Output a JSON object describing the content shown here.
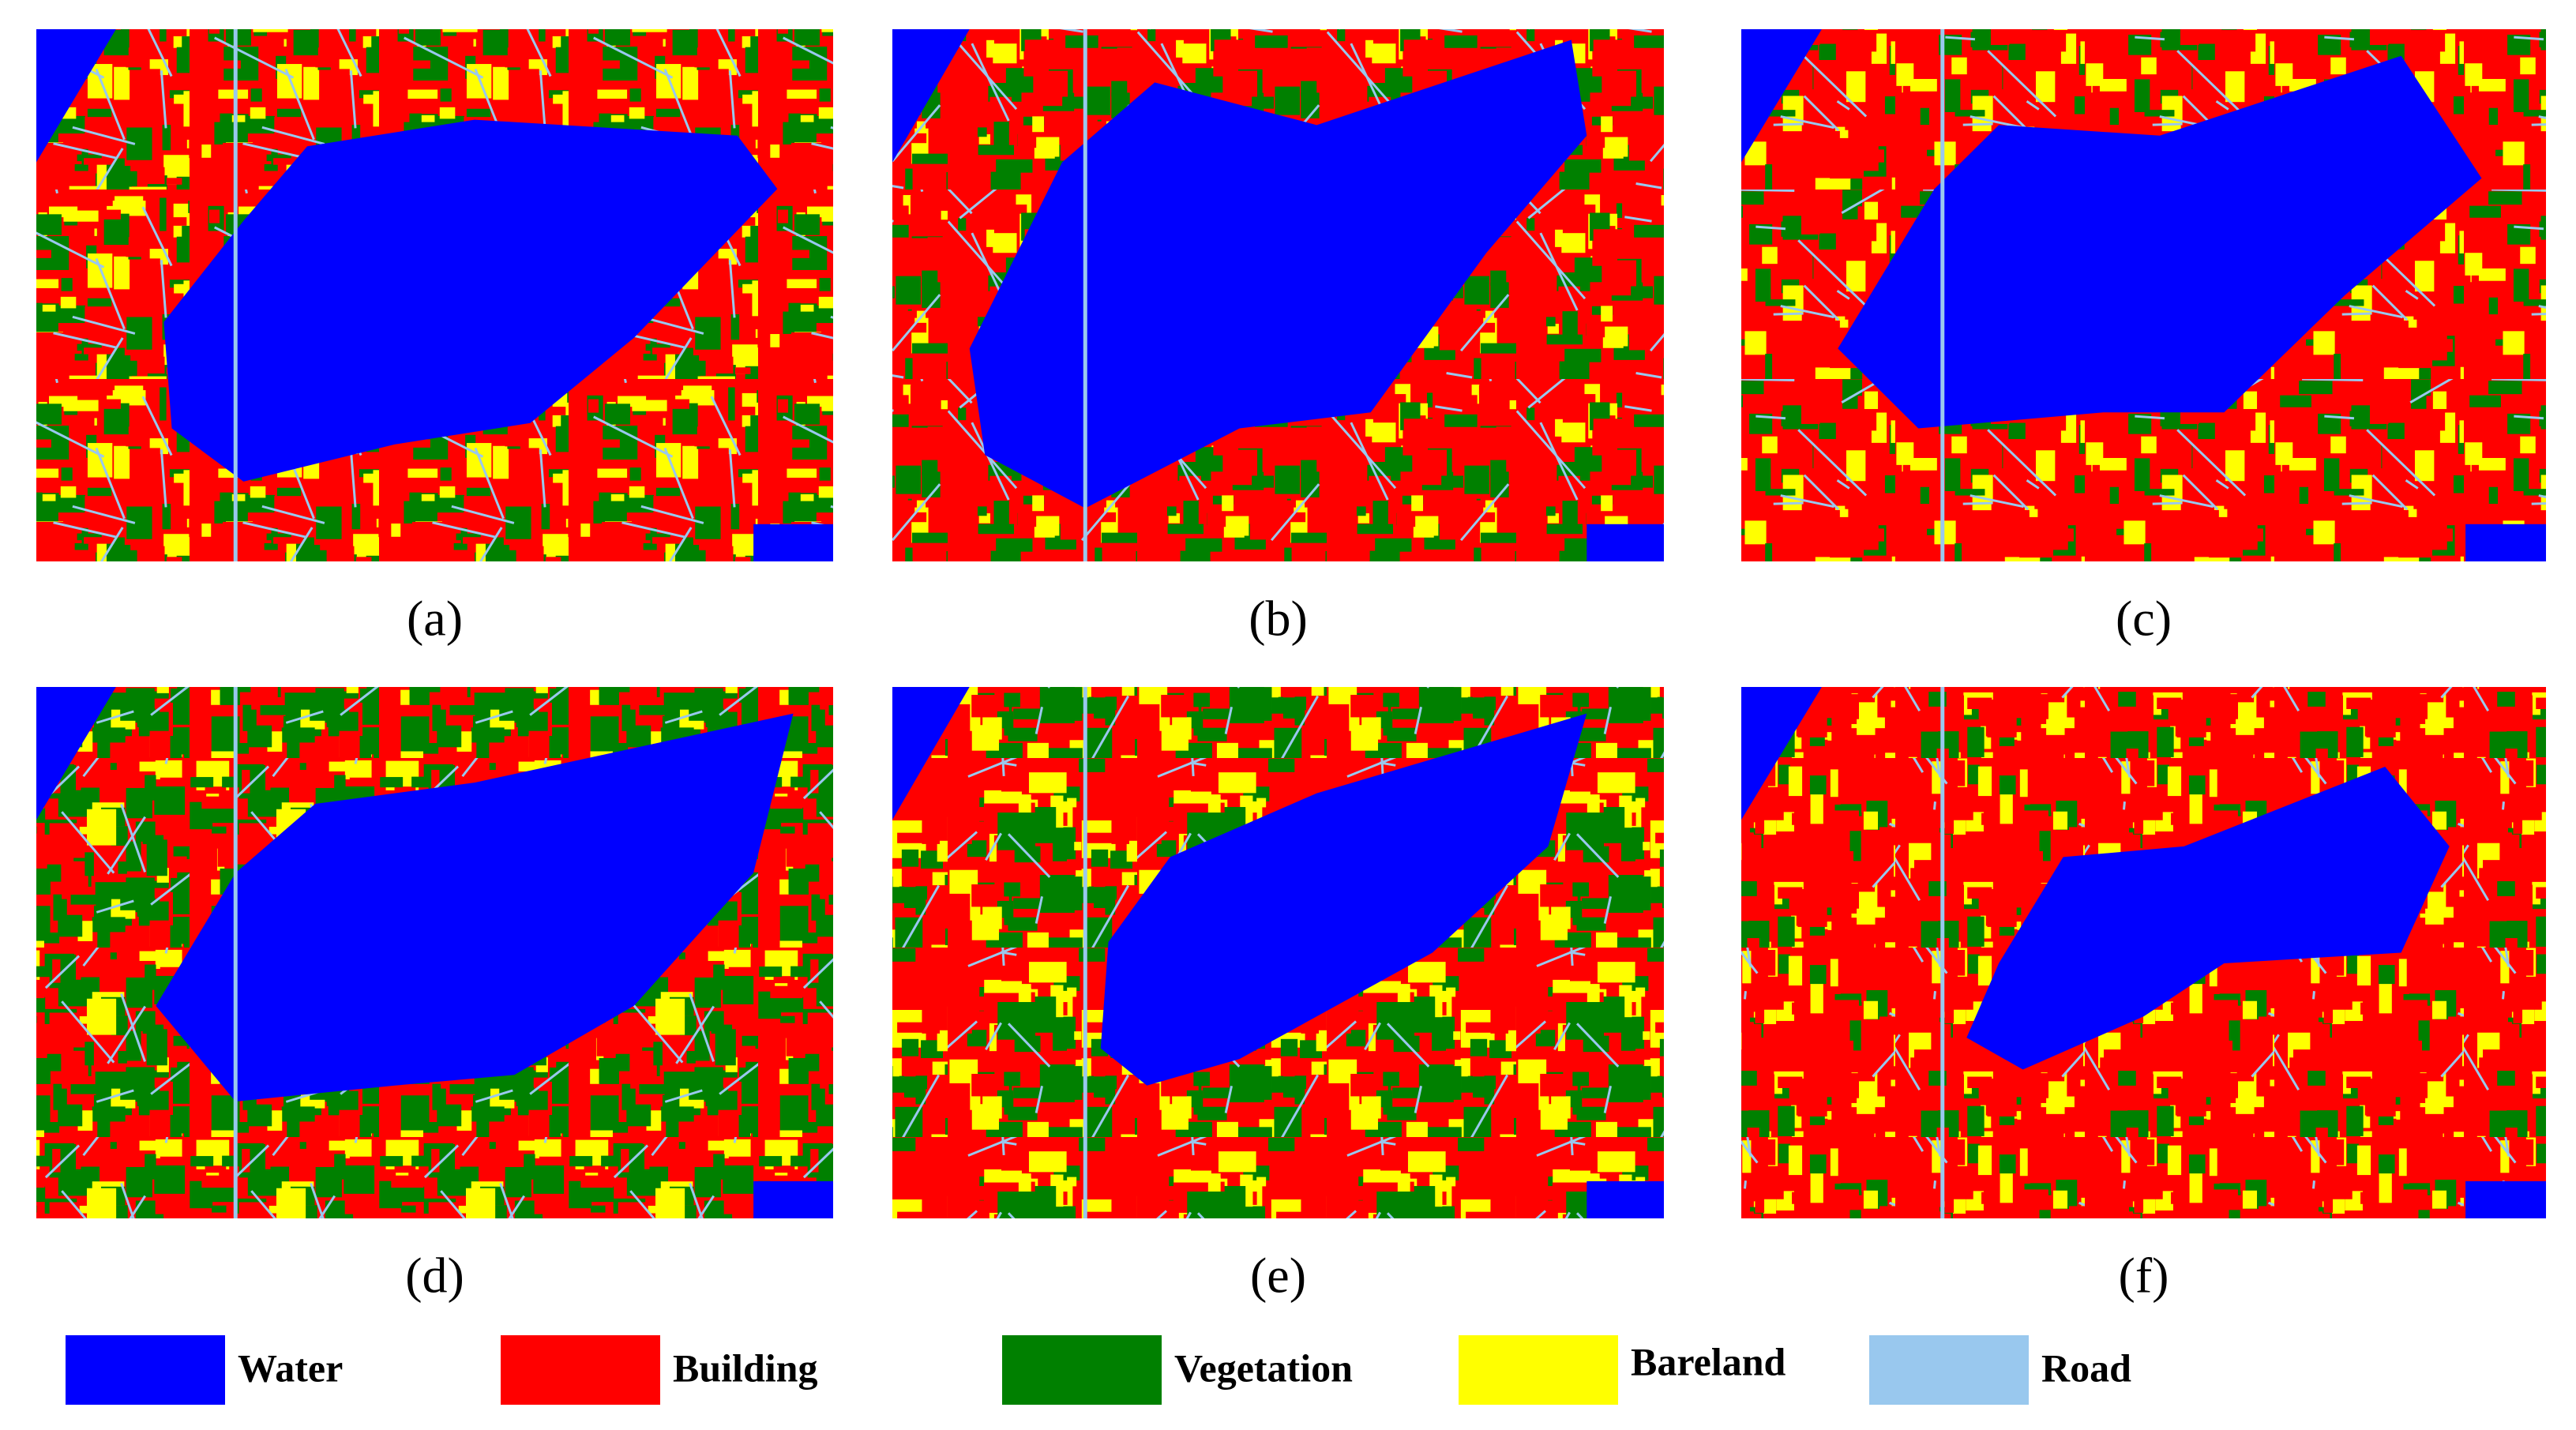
{
  "panels": [
    {
      "label": "(a)"
    },
    {
      "label": "(b)"
    },
    {
      "label": "(c)"
    },
    {
      "label": "(d)"
    },
    {
      "label": "(e)"
    },
    {
      "label": "(f)"
    }
  ],
  "legend": [
    {
      "name": "Water",
      "color": "#0000ff"
    },
    {
      "name": "Building",
      "color": "#ff0000"
    },
    {
      "name": "Vegetation",
      "color": "#008000"
    },
    {
      "name": "Bareland",
      "color": "#ffff00"
    },
    {
      "name": "Road",
      "color": "#99c8ee"
    }
  ]
}
